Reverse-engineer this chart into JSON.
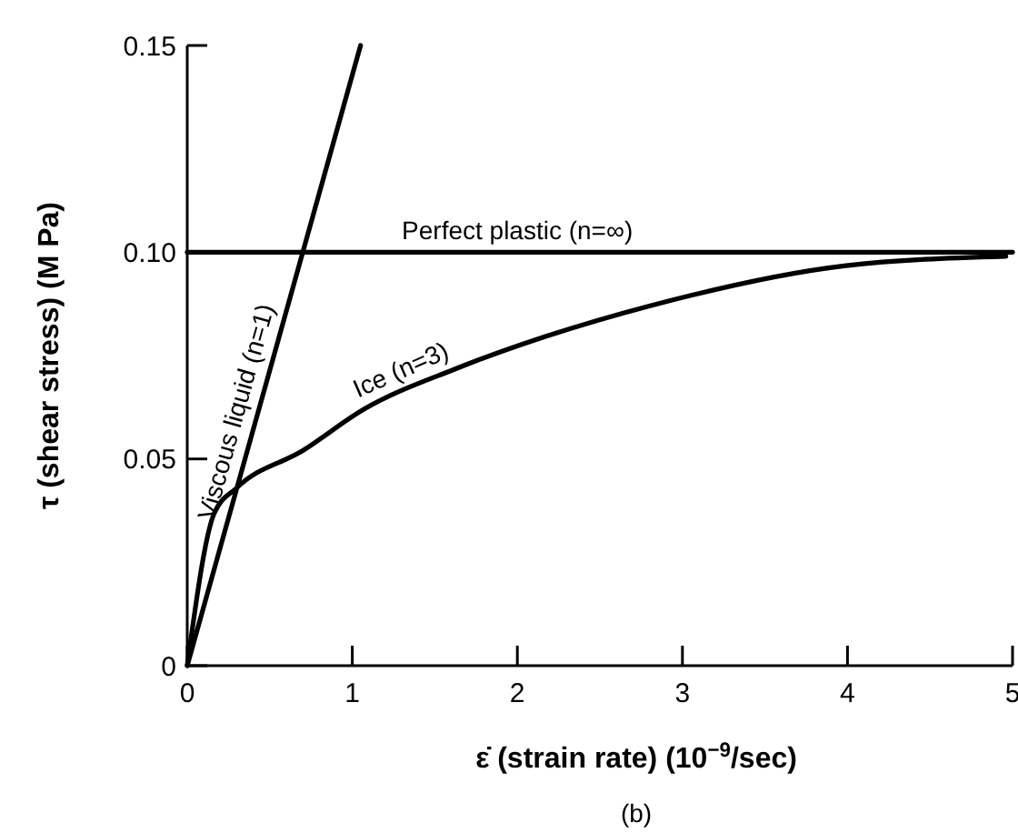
{
  "chart_data": {
    "type": "line",
    "xlabel": "ε̇ (strain rate) (10$^{−9}$/sec)",
    "ylabel": "τ (shear stress) (M Pa)",
    "xlim": [
      0,
      5
    ],
    "ylim": [
      0,
      0.15
    ],
    "xticks": [
      0,
      1,
      2,
      3,
      4,
      5
    ],
    "yticks": [
      0,
      0.05,
      {
        "value": 0.1,
        "label": "0.10"
      },
      0.15
    ],
    "grid": false,
    "marker": "none",
    "line_style": "solid",
    "series": [
      {
        "name": "Viscous liquid (n=1)",
        "color": "#000000",
        "x": [
          0,
          1.05
        ],
        "values": [
          0,
          0.15
        ]
      },
      {
        "name": "Perfect plastic (n=∞)",
        "color": "#000000",
        "x": [
          0,
          5
        ],
        "values": [
          0.1,
          0.1
        ]
      },
      {
        "name": "Ice (n=3)",
        "color": "#000000",
        "x": [
          0,
          0.165,
          0.3,
          0.7,
          1.07,
          1.62,
          2.17,
          2.8,
          3.98,
          4.96
        ],
        "values": [
          0,
          0.037,
          0.043,
          0.052,
          0.062,
          0.0717,
          0.0796,
          0.087,
          0.0967,
          0.099
        ]
      }
    ],
    "annotations": [
      "(b)"
    ]
  }
}
